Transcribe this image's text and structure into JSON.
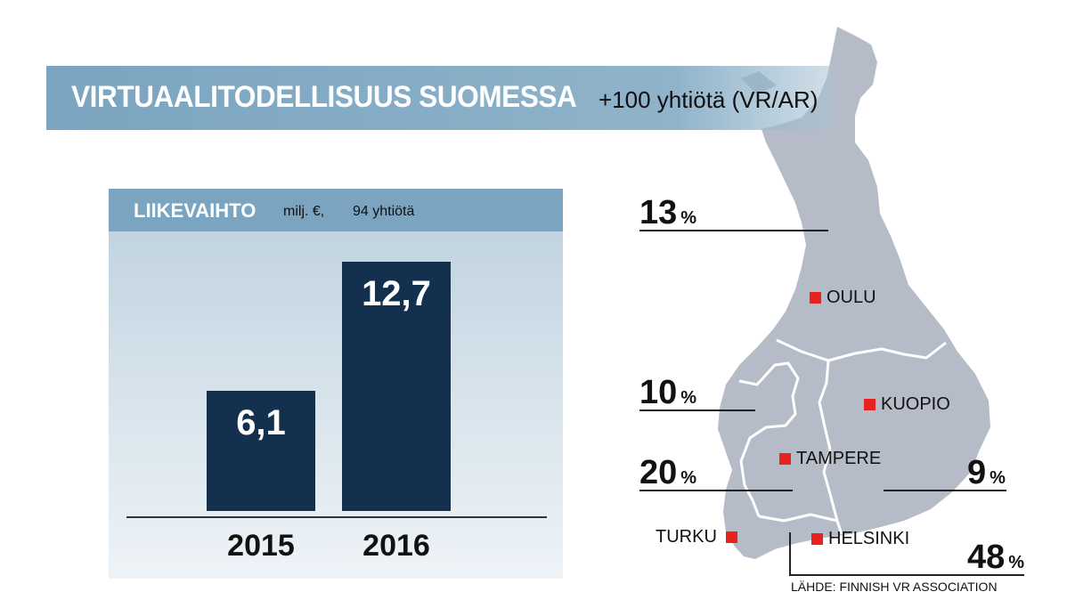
{
  "title": {
    "main": "VIRTUAALITODELLISUUS SUOMESSA",
    "sub": "+100 yhtiötä (VR/AR)"
  },
  "chart_data": {
    "type": "bar",
    "title": "LIIKEVAIHTO",
    "unit_label": "milj. €,",
    "count_label": "94 yhtiötä",
    "categories": [
      "2015",
      "2016"
    ],
    "values": [
      6.1,
      12.7
    ],
    "value_labels": [
      "6,1",
      "12,7"
    ],
    "ylim": [
      0,
      14.5
    ],
    "grid": false,
    "legend": "none",
    "bar_color": "#14304f"
  },
  "map": {
    "regions": [
      {
        "name": "north",
        "percent": "13",
        "sign": "%"
      },
      {
        "name": "west",
        "percent": "10",
        "sign": "%"
      },
      {
        "name": "southwest",
        "percent": "20",
        "sign": "%"
      },
      {
        "name": "east",
        "percent": "9",
        "sign": "%"
      },
      {
        "name": "south",
        "percent": "48",
        "sign": "%"
      }
    ],
    "cities": [
      {
        "name": "OULU"
      },
      {
        "name": "KUOPIO"
      },
      {
        "name": "TAMPERE"
      },
      {
        "name": "TURKU"
      },
      {
        "name": "HELSINKI"
      }
    ],
    "land_color": "#b5bcc7",
    "marker_color": "#e8221f"
  },
  "source": "LÄHDE: FINNISH VR ASSOCIATION"
}
